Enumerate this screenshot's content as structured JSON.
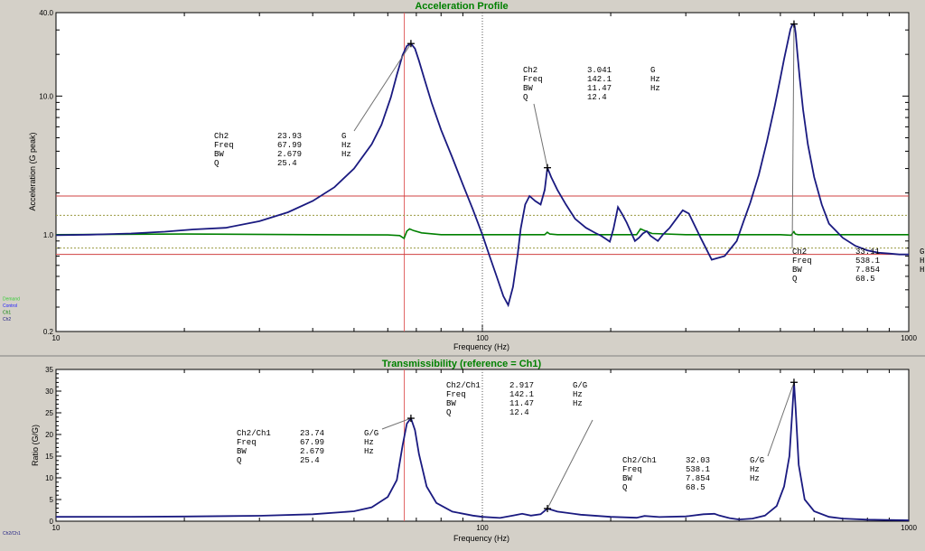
{
  "chart_data": [
    {
      "type": "line",
      "title": "Acceleration Profile",
      "xlabel": "Frequency (Hz)",
      "ylabel": "Acceleration (G peak)",
      "x_scale": "log",
      "y_scale": "log",
      "xlim": [
        10,
        1000
      ],
      "ylim": [
        0.2,
        40
      ],
      "x_ticks": [
        10,
        100,
        1000
      ],
      "x_tick_labels": [
        "10",
        "100",
        "1000"
      ],
      "y_ticks": [
        0.2,
        1.0,
        10.0,
        40.0
      ],
      "y_tick_labels": [
        "0.2",
        "1.0",
        "10.0",
        "40.0"
      ],
      "grid": false,
      "legend_position": "bottom-left",
      "legend": [
        {
          "label": "Demand",
          "color": "#33cc33"
        },
        {
          "label": "Control",
          "color": "#1a1aff"
        },
        {
          "label": "Ch1",
          "color": "#008000"
        },
        {
          "label": "Ch2",
          "color": "#1a1a80"
        }
      ],
      "reference_lines": {
        "vertical": [
          {
            "x": 65.6,
            "color": "#e06060"
          }
        ],
        "horizontal_solid": [
          {
            "y": 1.9,
            "color": "#d04040"
          },
          {
            "y": 0.72,
            "color": "#d04040"
          }
        ],
        "horizontal_dotted": [
          {
            "y": 1.38,
            "color": "#9a9a40"
          },
          {
            "y": 0.8,
            "color": "#9a9a40"
          }
        ]
      },
      "series": [
        {
          "name": "Ch2",
          "color": "#1a1a80",
          "x": [
            10,
            12,
            15,
            18,
            21,
            25,
            30,
            35,
            40,
            45,
            50,
            55,
            58,
            61,
            63,
            65,
            66.5,
            67.99,
            69.5,
            71,
            73,
            76,
            80,
            85,
            90,
            95,
            100,
            104,
            108,
            112,
            115,
            118,
            121,
            123,
            126,
            129,
            133,
            137,
            140,
            142.1,
            145,
            150,
            157,
            165,
            175,
            185,
            190,
            195,
            199,
            203,
            208,
            213,
            218,
            228,
            233,
            238,
            243,
            248,
            258,
            265,
            275,
            285,
            295,
            305,
            325,
            345,
            370,
            395,
            410,
            425,
            445,
            465,
            485,
            500,
            510,
            520,
            528,
            533,
            536,
            538.1,
            540,
            543,
            548,
            555,
            565,
            580,
            600,
            625,
            650,
            700,
            750,
            800,
            850,
            900,
            950,
            1000
          ],
          "y": [
            0.99,
            1.0,
            1.02,
            1.05,
            1.09,
            1.12,
            1.25,
            1.45,
            1.75,
            2.2,
            3.0,
            4.5,
            6.2,
            9.8,
            14.2,
            19.8,
            23.0,
            23.93,
            22.0,
            18.0,
            13.5,
            9.0,
            5.7,
            3.6,
            2.3,
            1.52,
            1.0,
            0.7,
            0.5,
            0.36,
            0.31,
            0.42,
            0.72,
            1.1,
            1.65,
            1.9,
            1.75,
            1.65,
            2.1,
            3.041,
            2.6,
            2.1,
            1.65,
            1.3,
            1.12,
            1.02,
            0.98,
            0.93,
            0.89,
            1.1,
            1.58,
            1.4,
            1.22,
            0.9,
            0.95,
            1.02,
            1.06,
            0.98,
            0.9,
            1.0,
            1.12,
            1.3,
            1.5,
            1.42,
            0.95,
            0.66,
            0.7,
            0.9,
            1.25,
            1.7,
            2.7,
            4.7,
            8.5,
            13.5,
            18.5,
            24.5,
            30.5,
            32.5,
            33.0,
            33.11,
            32.0,
            28.5,
            20.5,
            13.5,
            8.0,
            4.5,
            2.6,
            1.65,
            1.2,
            0.95,
            0.83,
            0.77,
            0.74,
            0.73,
            0.72,
            0.72
          ]
        },
        {
          "name": "Ch1",
          "color": "#008000",
          "x": [
            10,
            20,
            40,
            60,
            64,
            65.5,
            66.5,
            67.5,
            69,
            72,
            80,
            100,
            130,
            140,
            142,
            144,
            150,
            200,
            230,
            235,
            240,
            250,
            300,
            400,
            500,
            530,
            535,
            538,
            542,
            550,
            600,
            800,
            1000
          ],
          "y": [
            1.0,
            1.01,
            1.0,
            0.995,
            0.985,
            0.94,
            1.06,
            1.1,
            1.07,
            1.03,
            1.0,
            1.0,
            1.0,
            1.0,
            1.04,
            1.01,
            1.0,
            1.0,
            1.0,
            1.1,
            1.07,
            1.02,
            1.0,
            1.0,
            1.0,
            0.99,
            1.03,
            1.05,
            1.01,
            1.0,
            1.0,
            1.0,
            1.0
          ]
        }
      ],
      "annotations": [
        {
          "channel": "Ch2",
          "value": "23.93",
          "unit": "G",
          "freq": "67.99",
          "freq_unit": "Hz",
          "bw": "2.679",
          "bw_unit": "Hz",
          "q": "25.4",
          "peak_x": 67.99,
          "peak_y": 23.93
        },
        {
          "channel": "Ch2",
          "value": "3.041",
          "unit": "G",
          "freq": "142.1",
          "freq_unit": "Hz",
          "bw": "11.47",
          "bw_unit": "Hz",
          "q": "12.4",
          "peak_x": 142.1,
          "peak_y": 3.041
        },
        {
          "channel": "Ch2",
          "value": "33.11",
          "unit": "G",
          "freq": "538.1",
          "freq_unit": "H",
          "bw": "7.854",
          "bw_unit": "H",
          "q": "68.5",
          "peak_x": 538.1,
          "peak_y": 33.11
        }
      ]
    },
    {
      "type": "line",
      "title": "Transmissibility (reference = Ch1)",
      "xlabel": "Frequency (Hz)",
      "ylabel": "Ratio (G/G)",
      "x_scale": "log",
      "y_scale": "linear",
      "xlim": [
        10,
        1000
      ],
      "ylim": [
        0,
        35
      ],
      "x_ticks": [
        10,
        100,
        1000
      ],
      "x_tick_labels": [
        "10",
        "100",
        "1000"
      ],
      "y_ticks": [
        0,
        5,
        10,
        15,
        20,
        25,
        30,
        35
      ],
      "y_tick_labels": [
        "0",
        "5",
        "10",
        "15",
        "20",
        "25",
        "30",
        "35"
      ],
      "grid": false,
      "legend_position": "bottom-left",
      "legend": [
        {
          "label": "Ch2/Ch1",
          "color": "#1a1a80"
        }
      ],
      "reference_lines": {
        "vertical": [
          {
            "x": 65.6,
            "color": "#e06060"
          }
        ]
      },
      "series": [
        {
          "name": "Ch2/Ch1",
          "color": "#1a1a80",
          "x": [
            10,
            15,
            20,
            30,
            40,
            50,
            55,
            60,
            63,
            65,
            66.5,
            67.99,
            69.5,
            71,
            74,
            78,
            85,
            95,
            100,
            110,
            118,
            124,
            130,
            137,
            142.1,
            150,
            170,
            200,
            230,
            240,
            260,
            300,
            330,
            350,
            360,
            380,
            400,
            430,
            460,
            490,
            510,
            525,
            533,
            538.1,
            543,
            552,
            570,
            600,
            650,
            700,
            800,
            1000
          ],
          "y": [
            1.0,
            1.02,
            1.08,
            1.25,
            1.6,
            2.3,
            3.2,
            5.6,
            9.5,
            17.5,
            22.5,
            23.74,
            21.0,
            15.5,
            8.0,
            4.2,
            2.2,
            1.3,
            1.0,
            0.75,
            1.3,
            1.7,
            1.3,
            1.6,
            2.917,
            2.2,
            1.5,
            1.0,
            0.8,
            1.2,
            0.95,
            1.1,
            1.6,
            1.7,
            1.3,
            0.7,
            0.4,
            0.6,
            1.3,
            3.5,
            8.0,
            15.0,
            25.0,
            32.03,
            26.0,
            13.0,
            5.0,
            2.3,
            1.0,
            0.6,
            0.35,
            0.2
          ]
        }
      ],
      "annotations": [
        {
          "channel": "Ch2/Ch1",
          "value": "23.74",
          "unit": "G/G",
          "freq": "67.99",
          "freq_unit": "Hz",
          "bw": "2.679",
          "bw_unit": "Hz",
          "q": "25.4",
          "peak_x": 67.99,
          "peak_y": 23.74
        },
        {
          "channel": "Ch2/Ch1",
          "value": "2.917",
          "unit": "G/G",
          "freq": "142.1",
          "freq_unit": "Hz",
          "bw": "11.47",
          "bw_unit": "Hz",
          "q": "12.4",
          "peak_x": 142.1,
          "peak_y": 2.917
        },
        {
          "channel": "Ch2/Ch1",
          "value": "32.03",
          "unit": "G/G",
          "freq": "538.1",
          "freq_unit": "Hz",
          "bw": "7.854",
          "bw_unit": "Hz",
          "q": "68.5",
          "peak_x": 538.1,
          "peak_y": 32.03
        }
      ]
    }
  ]
}
